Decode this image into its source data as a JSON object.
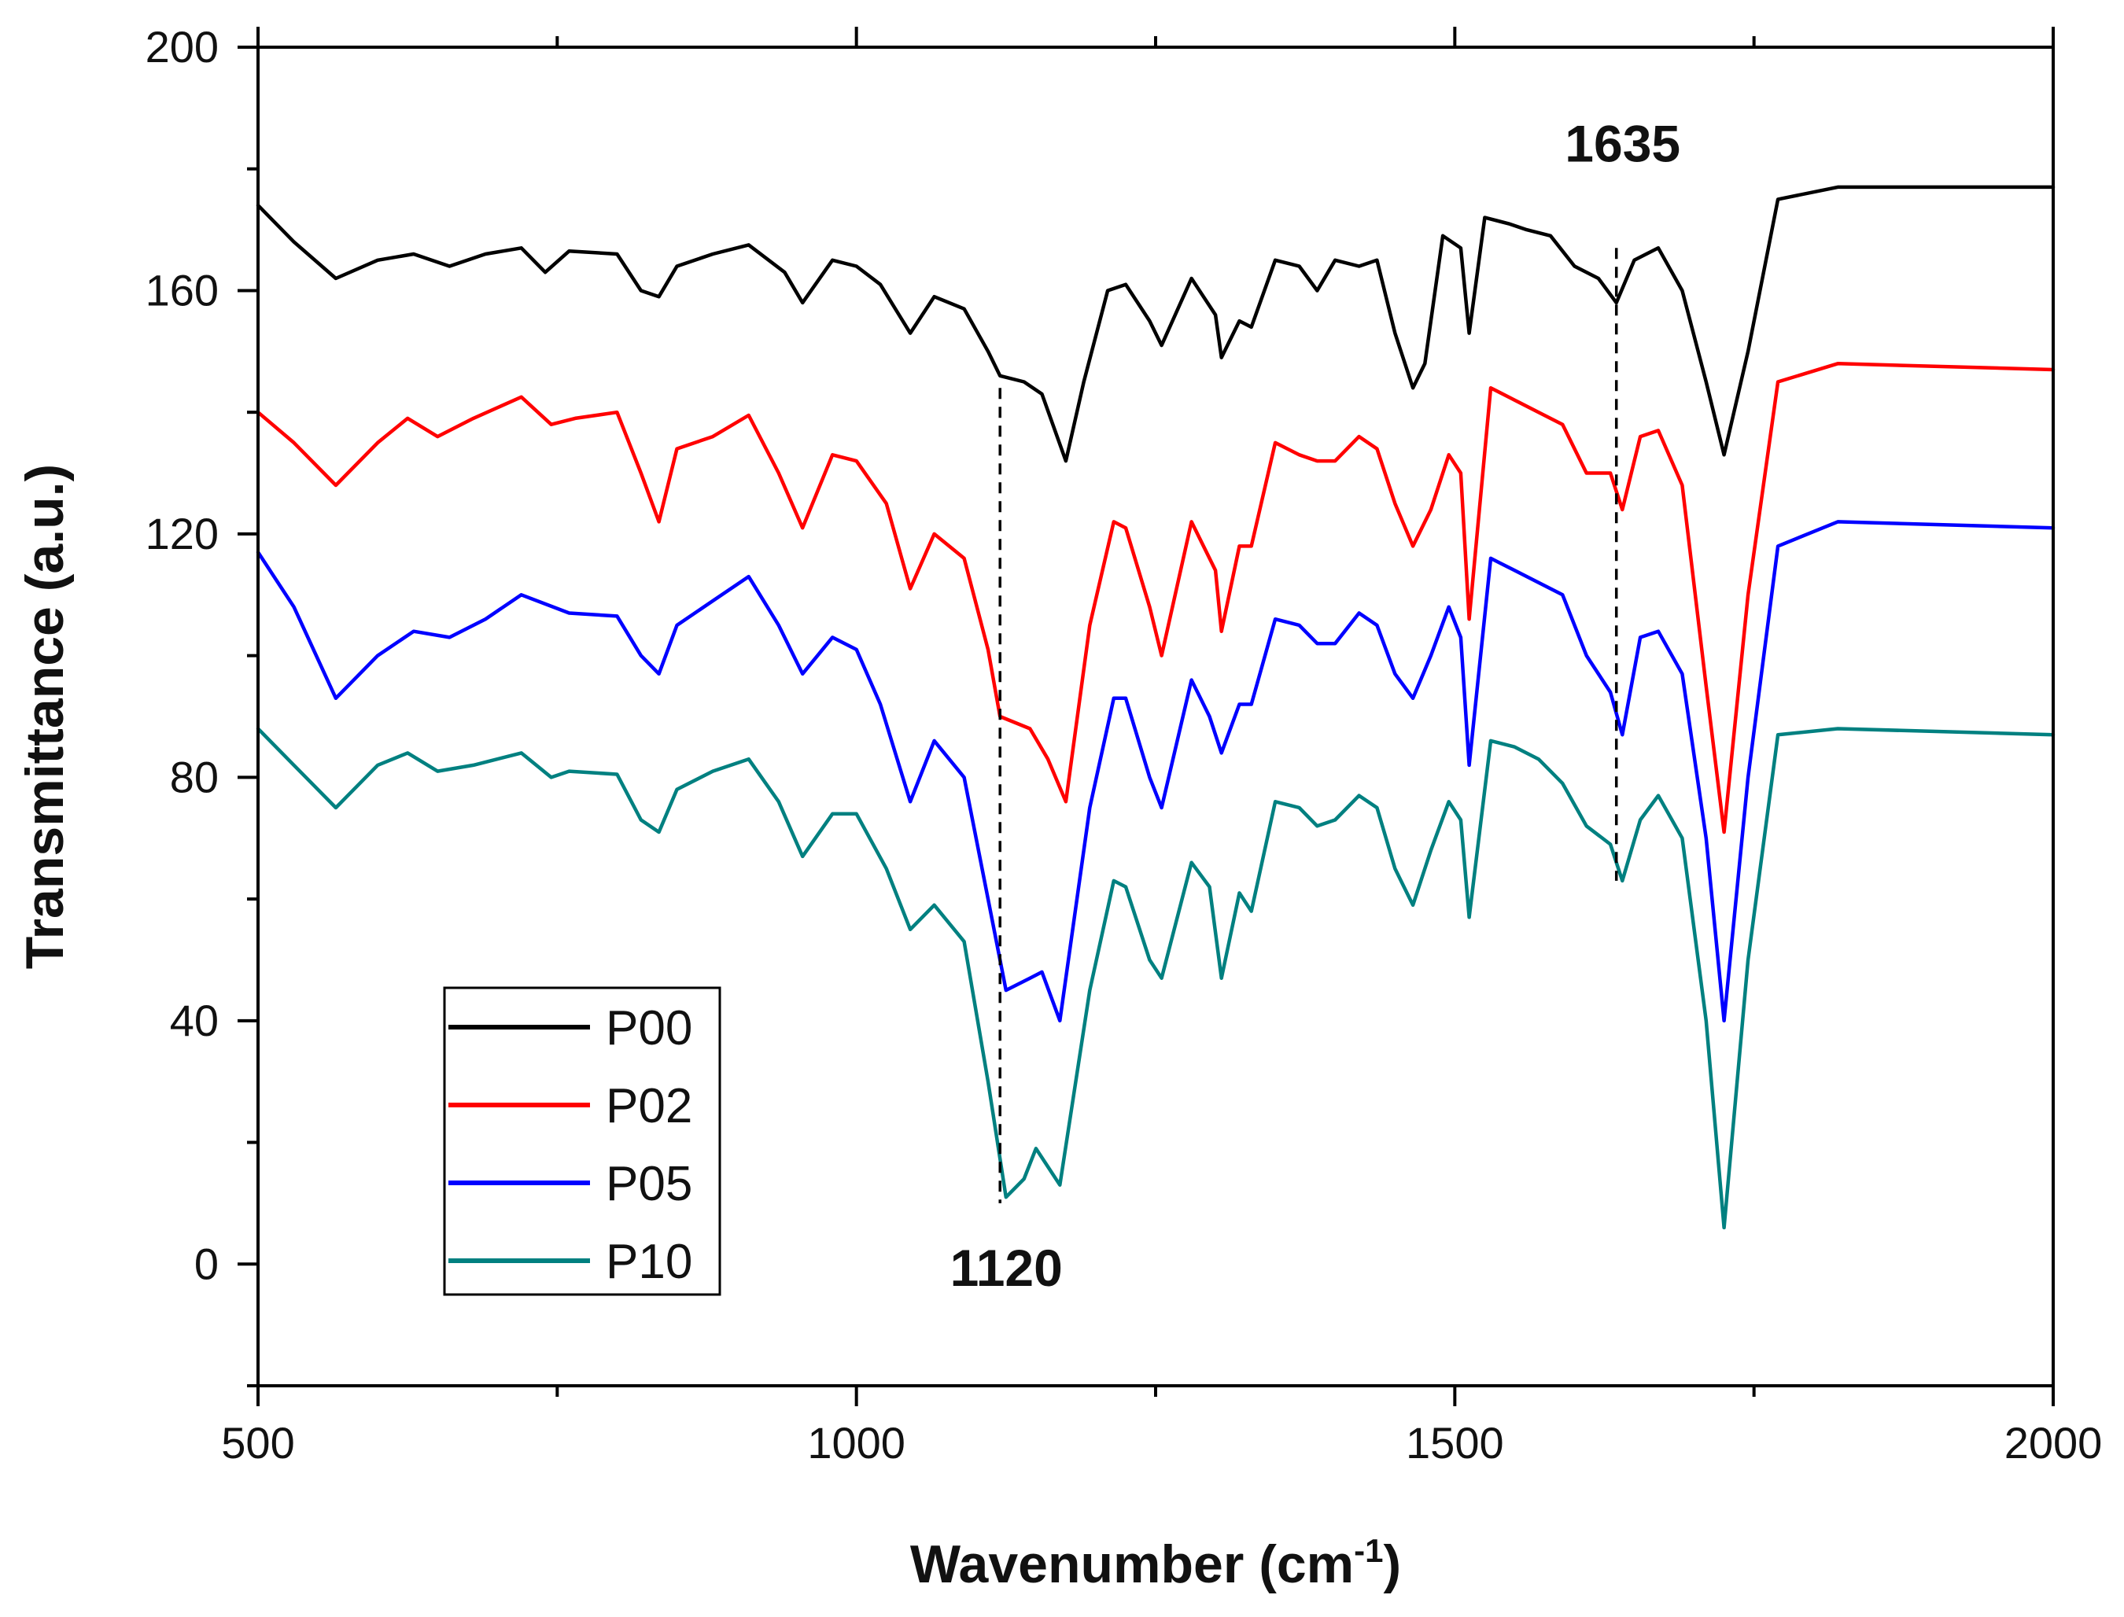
{
  "chart_data": {
    "type": "line",
    "title": "",
    "xlabel": "Wavenumber (cm",
    "xlabel_sup": "-1",
    "xlabel_end": ")",
    "ylabel": "Transmittance (a.u.)",
    "xlim": [
      500,
      2000
    ],
    "ylim": [
      -20,
      200
    ],
    "xticks": [
      500,
      1000,
      1500,
      2000
    ],
    "yticks": [
      0,
      40,
      80,
      120,
      160,
      200
    ],
    "grid": false,
    "legend": "bottom-left",
    "annotations": [
      {
        "label": "1120",
        "x": 1120,
        "y_top": 144,
        "y_bottom": 10
      },
      {
        "label": "1635",
        "x": 1635,
        "y_top": 167,
        "y_bottom": 63
      }
    ],
    "series": [
      {
        "name": "P00",
        "color": "#000000",
        "points": [
          [
            500,
            174
          ],
          [
            530,
            168
          ],
          [
            565,
            162
          ],
          [
            600,
            165
          ],
          [
            630,
            166
          ],
          [
            660,
            164
          ],
          [
            690,
            166
          ],
          [
            720,
            167
          ],
          [
            740,
            163
          ],
          [
            760,
            166.5
          ],
          [
            800,
            166
          ],
          [
            820,
            160
          ],
          [
            835,
            159
          ],
          [
            850,
            164
          ],
          [
            880,
            166
          ],
          [
            910,
            167.5
          ],
          [
            940,
            163
          ],
          [
            955,
            158
          ],
          [
            980,
            165
          ],
          [
            1000,
            164
          ],
          [
            1020,
            161
          ],
          [
            1045,
            153
          ],
          [
            1065,
            159
          ],
          [
            1090,
            157
          ],
          [
            1110,
            150
          ],
          [
            1120,
            146
          ],
          [
            1140,
            145
          ],
          [
            1155,
            143
          ],
          [
            1175,
            132
          ],
          [
            1190,
            145
          ],
          [
            1210,
            160
          ],
          [
            1225,
            161
          ],
          [
            1245,
            155
          ],
          [
            1255,
            151
          ],
          [
            1280,
            162
          ],
          [
            1300,
            156
          ],
          [
            1305,
            149
          ],
          [
            1320,
            155
          ],
          [
            1330,
            154
          ],
          [
            1350,
            165
          ],
          [
            1370,
            164
          ],
          [
            1385,
            160
          ],
          [
            1400,
            165
          ],
          [
            1420,
            164
          ],
          [
            1435,
            165
          ],
          [
            1450,
            153
          ],
          [
            1465,
            144
          ],
          [
            1475,
            148
          ],
          [
            1490,
            169
          ],
          [
            1505,
            167
          ],
          [
            1512,
            153
          ],
          [
            1525,
            172
          ],
          [
            1545,
            171
          ],
          [
            1560,
            170
          ],
          [
            1580,
            169
          ],
          [
            1600,
            164
          ],
          [
            1620,
            162
          ],
          [
            1635,
            158
          ],
          [
            1650,
            165
          ],
          [
            1670,
            167
          ],
          [
            1690,
            160
          ],
          [
            1710,
            145
          ],
          [
            1725,
            133
          ],
          [
            1745,
            150
          ],
          [
            1770,
            175
          ],
          [
            1820,
            177
          ],
          [
            2000,
            177
          ]
        ]
      },
      {
        "name": "P02",
        "color": "#ff0000",
        "points": [
          [
            500,
            140
          ],
          [
            530,
            135
          ],
          [
            565,
            128
          ],
          [
            600,
            135
          ],
          [
            625,
            139
          ],
          [
            650,
            136
          ],
          [
            680,
            139
          ],
          [
            720,
            142.5
          ],
          [
            745,
            138
          ],
          [
            765,
            139
          ],
          [
            800,
            140
          ],
          [
            820,
            130
          ],
          [
            835,
            122
          ],
          [
            850,
            134
          ],
          [
            880,
            136
          ],
          [
            910,
            139.5
          ],
          [
            935,
            130
          ],
          [
            955,
            121
          ],
          [
            980,
            133
          ],
          [
            1000,
            132
          ],
          [
            1025,
            125
          ],
          [
            1045,
            111
          ],
          [
            1065,
            120
          ],
          [
            1090,
            116
          ],
          [
            1110,
            101
          ],
          [
            1120,
            90
          ],
          [
            1145,
            88
          ],
          [
            1160,
            83
          ],
          [
            1175,
            76
          ],
          [
            1195,
            105
          ],
          [
            1215,
            122
          ],
          [
            1225,
            121
          ],
          [
            1245,
            108
          ],
          [
            1255,
            100
          ],
          [
            1280,
            122
          ],
          [
            1300,
            114
          ],
          [
            1305,
            104
          ],
          [
            1320,
            118
          ],
          [
            1330,
            118
          ],
          [
            1350,
            135
          ],
          [
            1370,
            133
          ],
          [
            1385,
            132
          ],
          [
            1400,
            132
          ],
          [
            1420,
            136
          ],
          [
            1435,
            134
          ],
          [
            1450,
            125
          ],
          [
            1465,
            118
          ],
          [
            1480,
            124
          ],
          [
            1495,
            133
          ],
          [
            1505,
            130
          ],
          [
            1512,
            106
          ],
          [
            1530,
            144
          ],
          [
            1550,
            142
          ],
          [
            1570,
            140
          ],
          [
            1590,
            138
          ],
          [
            1610,
            130
          ],
          [
            1630,
            130
          ],
          [
            1640,
            124
          ],
          [
            1655,
            136
          ],
          [
            1670,
            137
          ],
          [
            1690,
            128
          ],
          [
            1710,
            95
          ],
          [
            1725,
            71
          ],
          [
            1745,
            110
          ],
          [
            1770,
            145
          ],
          [
            1820,
            148
          ],
          [
            2000,
            147
          ]
        ]
      },
      {
        "name": "P05",
        "color": "#0000ff",
        "points": [
          [
            500,
            117
          ],
          [
            530,
            108
          ],
          [
            565,
            93
          ],
          [
            600,
            100
          ],
          [
            630,
            104
          ],
          [
            660,
            103
          ],
          [
            690,
            106
          ],
          [
            720,
            110
          ],
          [
            760,
            107
          ],
          [
            800,
            106.5
          ],
          [
            820,
            100
          ],
          [
            835,
            97
          ],
          [
            850,
            105
          ],
          [
            880,
            109
          ],
          [
            910,
            113
          ],
          [
            935,
            105
          ],
          [
            955,
            97
          ],
          [
            980,
            103
          ],
          [
            1000,
            101
          ],
          [
            1020,
            92
          ],
          [
            1045,
            76
          ],
          [
            1065,
            86
          ],
          [
            1090,
            80
          ],
          [
            1110,
            60
          ],
          [
            1125,
            45
          ],
          [
            1145,
            47
          ],
          [
            1155,
            48
          ],
          [
            1170,
            40
          ],
          [
            1195,
            75
          ],
          [
            1215,
            93
          ],
          [
            1225,
            93
          ],
          [
            1245,
            80
          ],
          [
            1255,
            75
          ],
          [
            1280,
            96
          ],
          [
            1295,
            90
          ],
          [
            1305,
            84
          ],
          [
            1320,
            92
          ],
          [
            1330,
            92
          ],
          [
            1350,
            106
          ],
          [
            1370,
            105
          ],
          [
            1385,
            102
          ],
          [
            1400,
            102
          ],
          [
            1420,
            107
          ],
          [
            1435,
            105
          ],
          [
            1450,
            97
          ],
          [
            1465,
            93
          ],
          [
            1480,
            100
          ],
          [
            1495,
            108
          ],
          [
            1505,
            103
          ],
          [
            1512,
            82
          ],
          [
            1530,
            116
          ],
          [
            1550,
            114
          ],
          [
            1570,
            112
          ],
          [
            1590,
            110
          ],
          [
            1610,
            100
          ],
          [
            1630,
            94
          ],
          [
            1640,
            87
          ],
          [
            1655,
            103
          ],
          [
            1670,
            104
          ],
          [
            1690,
            97
          ],
          [
            1710,
            70
          ],
          [
            1725,
            40
          ],
          [
            1745,
            80
          ],
          [
            1770,
            118
          ],
          [
            1820,
            122
          ],
          [
            2000,
            121
          ]
        ]
      },
      {
        "name": "P10",
        "color": "#008080",
        "points": [
          [
            500,
            88
          ],
          [
            530,
            82
          ],
          [
            565,
            75
          ],
          [
            600,
            82
          ],
          [
            625,
            84
          ],
          [
            650,
            81
          ],
          [
            680,
            82
          ],
          [
            720,
            84
          ],
          [
            745,
            80
          ],
          [
            760,
            81
          ],
          [
            800,
            80.5
          ],
          [
            820,
            73
          ],
          [
            835,
            71
          ],
          [
            850,
            78
          ],
          [
            880,
            81
          ],
          [
            910,
            83
          ],
          [
            935,
            76
          ],
          [
            955,
            67
          ],
          [
            980,
            74
          ],
          [
            1000,
            74
          ],
          [
            1025,
            65
          ],
          [
            1045,
            55
          ],
          [
            1065,
            59
          ],
          [
            1090,
            53
          ],
          [
            1110,
            30
          ],
          [
            1125,
            11
          ],
          [
            1140,
            14
          ],
          [
            1150,
            19
          ],
          [
            1160,
            16
          ],
          [
            1170,
            13
          ],
          [
            1195,
            45
          ],
          [
            1215,
            63
          ],
          [
            1225,
            62
          ],
          [
            1245,
            50
          ],
          [
            1255,
            47
          ],
          [
            1280,
            66
          ],
          [
            1295,
            62
          ],
          [
            1305,
            47
          ],
          [
            1320,
            61
          ],
          [
            1330,
            58
          ],
          [
            1350,
            76
          ],
          [
            1370,
            75
          ],
          [
            1385,
            72
          ],
          [
            1400,
            73
          ],
          [
            1420,
            77
          ],
          [
            1435,
            75
          ],
          [
            1450,
            65
          ],
          [
            1465,
            59
          ],
          [
            1480,
            68
          ],
          [
            1495,
            76
          ],
          [
            1505,
            73
          ],
          [
            1512,
            57
          ],
          [
            1530,
            86
          ],
          [
            1550,
            85
          ],
          [
            1570,
            83
          ],
          [
            1590,
            79
          ],
          [
            1610,
            72
          ],
          [
            1630,
            69
          ],
          [
            1640,
            63
          ],
          [
            1655,
            73
          ],
          [
            1670,
            77
          ],
          [
            1690,
            70
          ],
          [
            1710,
            40
          ],
          [
            1725,
            6
          ],
          [
            1745,
            50
          ],
          [
            1770,
            87
          ],
          [
            1820,
            88
          ],
          [
            2000,
            87
          ]
        ]
      }
    ]
  }
}
